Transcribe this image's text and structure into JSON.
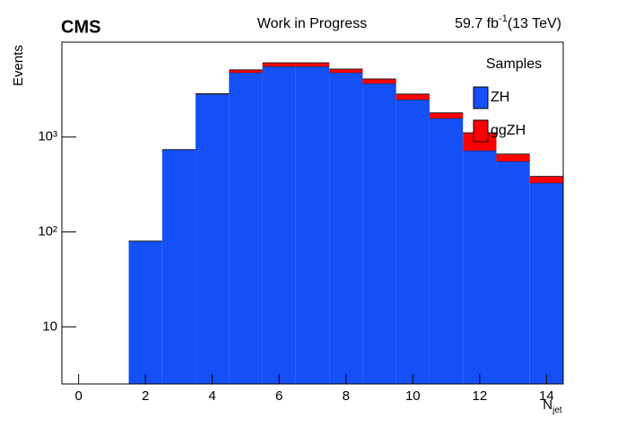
{
  "chart_data": {
    "type": "stacked_histogram",
    "title": "Work in Progress",
    "experiment": "CMS",
    "lumi": {
      "main": "59.7 fb",
      "sup": "-1",
      "energy": "(13 TeV)"
    },
    "xlabel": {
      "main": "N",
      "sub": "jet"
    },
    "ylabel": "Events",
    "legend_title": "Samples",
    "bins": [
      -0.5,
      0.5,
      1.5,
      2.5,
      3.5,
      4.5,
      5.5,
      6.5,
      7.5,
      8.5,
      9.5,
      10.5,
      11.5,
      12.5,
      13.5,
      14.5
    ],
    "series": [
      {
        "name": "ZH",
        "color": "#1450f5",
        "values": [
          0,
          0,
          80,
          738,
          2840,
          4780,
          5560,
          5560,
          4780,
          3680,
          2490,
          1580,
          721,
          556,
          330
        ]
      },
      {
        "name": "ggZH",
        "color": "#ff0000",
        "values": [
          0,
          0,
          0,
          0,
          30,
          320,
          500,
          500,
          430,
          420,
          350,
          220,
          390,
          106,
          55
        ]
      }
    ],
    "xlim": [
      -0.5,
      14.5
    ],
    "xticks": [
      0,
      2,
      4,
      6,
      8,
      10,
      12,
      14
    ],
    "ylim": [
      2.5,
      10000
    ],
    "log_y": true,
    "yticks": [
      10,
      {
        "value": 100,
        "label": "10²"
      },
      {
        "value": 1000,
        "label": "10³"
      }
    ]
  }
}
